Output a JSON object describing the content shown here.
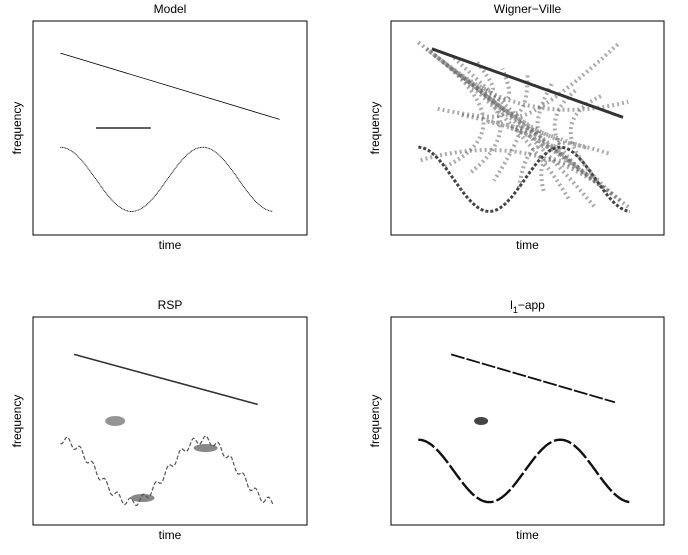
{
  "panels": [
    {
      "title": {
        "base": "Model"
      },
      "xlabel": "time",
      "ylabel": "frequency"
    },
    {
      "title": {
        "base": "Wigner−Ville"
      },
      "xlabel": "time",
      "ylabel": "frequency"
    },
    {
      "title": {
        "base": "RSP"
      },
      "xlabel": "time",
      "ylabel": "frequency"
    },
    {
      "title": {
        "base": "l",
        "sub": "1",
        "rest": "−app"
      },
      "xlabel": "time",
      "ylabel": "frequency"
    }
  ]
}
